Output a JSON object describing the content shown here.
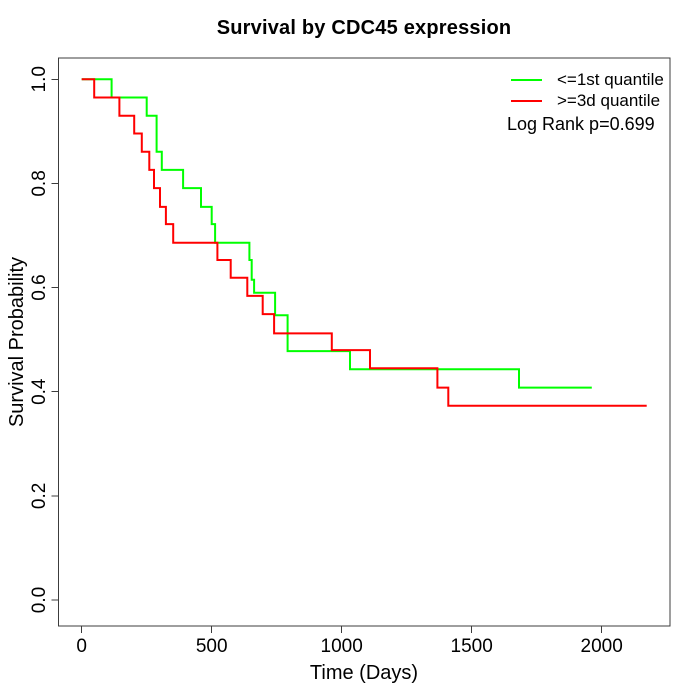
{
  "chart_data": {
    "type": "line",
    "subtype": "kaplan_meier_step_survival",
    "title": "Survival by CDC45 expression",
    "xlabel": "Time (Days)",
    "ylabel": "Survival Probability",
    "xlim": [
      0,
      2260
    ],
    "ylim": [
      0.0,
      1.0
    ],
    "x_ticks": [
      "0",
      "500",
      "1000",
      "1500",
      "2000"
    ],
    "x_tick_values": [
      0,
      500,
      1000,
      1500,
      2000
    ],
    "y_ticks": [
      "0.0",
      "0.2",
      "0.4",
      "0.6",
      "0.8",
      "1.0"
    ],
    "y_tick_values": [
      0.0,
      0.2,
      0.4,
      0.6,
      0.8,
      1.0
    ],
    "grid": false,
    "legend_position": "top-right",
    "annotation": "Log Rank p=0.699",
    "axis_color": "#3c3c3c",
    "text_color": "#000000",
    "series": [
      {
        "name": "<=1st quantile",
        "color": "#00ff00",
        "end_time": 1962,
        "steps": [
          [
            0,
            1.0
          ],
          [
            115,
            0.965
          ],
          [
            250,
            0.93
          ],
          [
            288,
            0.861
          ],
          [
            308,
            0.826
          ],
          [
            390,
            0.791
          ],
          [
            459,
            0.755
          ],
          [
            500,
            0.722
          ],
          [
            513,
            0.686
          ],
          [
            645,
            0.653
          ],
          [
            654,
            0.615
          ],
          [
            663,
            0.59
          ],
          [
            744,
            0.547
          ],
          [
            792,
            0.478
          ],
          [
            1032,
            0.443
          ],
          [
            1682,
            0.408
          ]
        ]
      },
      {
        "name": ">=3d quantile",
        "color": "#ff0000",
        "end_time": 2173,
        "steps": [
          [
            0,
            1.0
          ],
          [
            48,
            0.965
          ],
          [
            145,
            0.93
          ],
          [
            202,
            0.896
          ],
          [
            231,
            0.861
          ],
          [
            260,
            0.826
          ],
          [
            278,
            0.791
          ],
          [
            301,
            0.755
          ],
          [
            324,
            0.722
          ],
          [
            352,
            0.686
          ],
          [
            522,
            0.653
          ],
          [
            573,
            0.619
          ],
          [
            637,
            0.584
          ],
          [
            696,
            0.549
          ],
          [
            740,
            0.512
          ],
          [
            962,
            0.48
          ],
          [
            1109,
            0.445
          ],
          [
            1368,
            0.408
          ],
          [
            1410,
            0.373
          ]
        ]
      }
    ]
  }
}
